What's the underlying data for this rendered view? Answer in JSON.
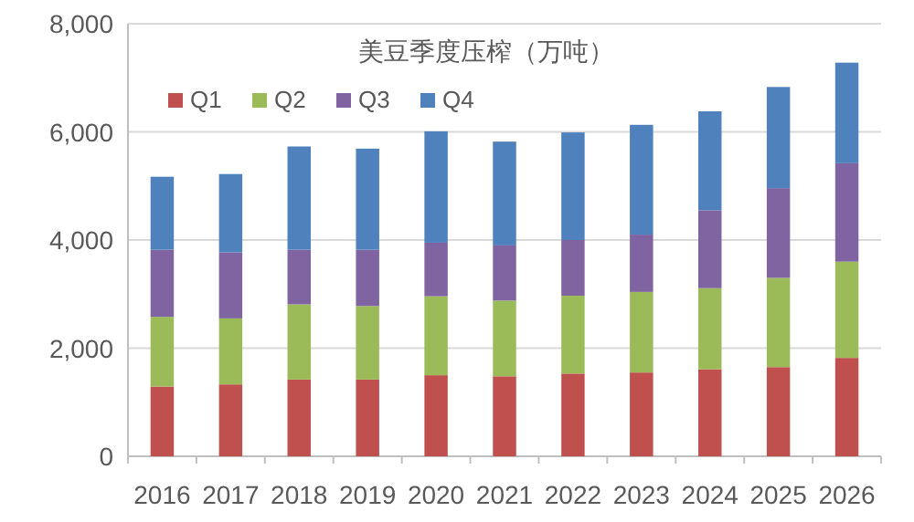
{
  "chart_data": {
    "type": "bar",
    "stacked": true,
    "title": "美豆季度压榨（万吨）",
    "categories": [
      "2016",
      "2017",
      "2018",
      "2019",
      "2020",
      "2021",
      "2022",
      "2023",
      "2024",
      "2025",
      "2026"
    ],
    "series": [
      {
        "name": "Q1",
        "color": "#c0504d",
        "values": [
          1290,
          1330,
          1420,
          1420,
          1500,
          1480,
          1530,
          1550,
          1610,
          1650,
          1820
        ]
      },
      {
        "name": "Q2",
        "color": "#9bbb59",
        "values": [
          1290,
          1220,
          1390,
          1360,
          1460,
          1400,
          1440,
          1490,
          1500,
          1650,
          1780
        ]
      },
      {
        "name": "Q3",
        "color": "#8064a2",
        "values": [
          1240,
          1220,
          1010,
          1040,
          990,
          1020,
          1030,
          1060,
          1440,
          1660,
          1820
        ]
      },
      {
        "name": "Q4",
        "color": "#4f81bd",
        "values": [
          1350,
          1450,
          1910,
          1870,
          2060,
          1920,
          1990,
          2030,
          1830,
          1870,
          1860
        ]
      }
    ],
    "ylim": [
      0,
      8000
    ],
    "yticks": [
      {
        "value": 0,
        "label": "0"
      },
      {
        "value": 2000,
        "label": "2,000"
      },
      {
        "value": 4000,
        "label": "4,000"
      },
      {
        "value": 6000,
        "label": "6,000"
      },
      {
        "value": 8000,
        "label": "8,000"
      }
    ],
    "grid": "y",
    "legend": "top left"
  }
}
